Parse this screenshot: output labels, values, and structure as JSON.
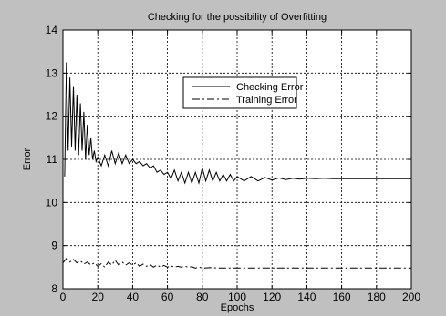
{
  "chart_data": {
    "type": "line",
    "title": "Checking for the possibility of Overfitting",
    "xlabel": "Epochs",
    "ylabel": "Error",
    "xlim": [
      0,
      200
    ],
    "ylim": [
      8,
      14
    ],
    "xticks": [
      0,
      20,
      40,
      60,
      80,
      100,
      120,
      140,
      160,
      180,
      200
    ],
    "yticks": [
      8,
      9,
      10,
      11,
      12,
      13,
      14
    ],
    "grid": true,
    "legend_position": "upper-center",
    "colors": {
      "figure_bg": "#c0c0c0",
      "axes_bg": "#ffffff",
      "line": "#000000"
    },
    "series": [
      {
        "name": "Checking Error",
        "style": "solid",
        "x": [
          1,
          2,
          3,
          4,
          5,
          6,
          7,
          8,
          9,
          10,
          11,
          12,
          13,
          14,
          15,
          16,
          17,
          18,
          19,
          20,
          22,
          24,
          26,
          28,
          30,
          32,
          34,
          36,
          38,
          40,
          42,
          44,
          46,
          48,
          50,
          52,
          54,
          56,
          58,
          60,
          62,
          64,
          66,
          68,
          70,
          72,
          74,
          76,
          78,
          80,
          82,
          84,
          86,
          88,
          90,
          92,
          94,
          96,
          98,
          100,
          104,
          108,
          112,
          116,
          120,
          124,
          128,
          132,
          136,
          140,
          145,
          150,
          155,
          160,
          165,
          170,
          175,
          180,
          185,
          190,
          195,
          200
        ],
        "y": [
          10.6,
          13.25,
          11.2,
          12.9,
          11.3,
          12.7,
          11.2,
          12.5,
          11.1,
          12.3,
          11.2,
          12.1,
          11.0,
          11.8,
          11.1,
          11.5,
          11.0,
          11.2,
          10.95,
          11.05,
          10.85,
          11.1,
          10.85,
          11.2,
          10.9,
          11.15,
          10.9,
          11.1,
          10.9,
          11.0,
          10.9,
          10.95,
          10.85,
          10.9,
          10.8,
          10.85,
          10.7,
          10.75,
          10.65,
          10.7,
          10.55,
          10.75,
          10.5,
          10.7,
          10.45,
          10.7,
          10.45,
          10.7,
          10.45,
          10.8,
          10.5,
          10.75,
          10.5,
          10.7,
          10.5,
          10.65,
          10.5,
          10.65,
          10.5,
          10.6,
          10.5,
          10.6,
          10.5,
          10.58,
          10.52,
          10.57,
          10.53,
          10.56,
          10.54,
          10.56,
          10.55,
          10.56,
          10.55,
          10.55,
          10.55,
          10.55,
          10.55,
          10.55,
          10.55,
          10.55,
          10.55,
          10.55
        ]
      },
      {
        "name": "Training Error",
        "style": "dashdot",
        "x": [
          0,
          2,
          4,
          6,
          8,
          10,
          12,
          14,
          16,
          18,
          20,
          22,
          24,
          26,
          28,
          30,
          32,
          34,
          36,
          38,
          40,
          42,
          44,
          46,
          48,
          50,
          52,
          54,
          56,
          58,
          60,
          62,
          64,
          66,
          68,
          70,
          72,
          74,
          76,
          78,
          80,
          85,
          90,
          100,
          110,
          120,
          140,
          160,
          180,
          200
        ],
        "y": [
          8.6,
          8.7,
          8.62,
          8.68,
          8.6,
          8.65,
          8.57,
          8.62,
          8.55,
          8.6,
          8.52,
          8.58,
          8.5,
          8.62,
          8.55,
          8.66,
          8.55,
          8.62,
          8.55,
          8.6,
          8.55,
          8.6,
          8.52,
          8.57,
          8.52,
          8.56,
          8.5,
          8.55,
          8.5,
          8.54,
          8.5,
          8.53,
          8.5,
          8.52,
          8.5,
          8.52,
          8.5,
          8.51,
          8.48,
          8.5,
          8.48,
          8.49,
          8.48,
          8.48,
          8.48,
          8.48,
          8.48,
          8.48,
          8.48,
          8.48
        ]
      }
    ]
  }
}
